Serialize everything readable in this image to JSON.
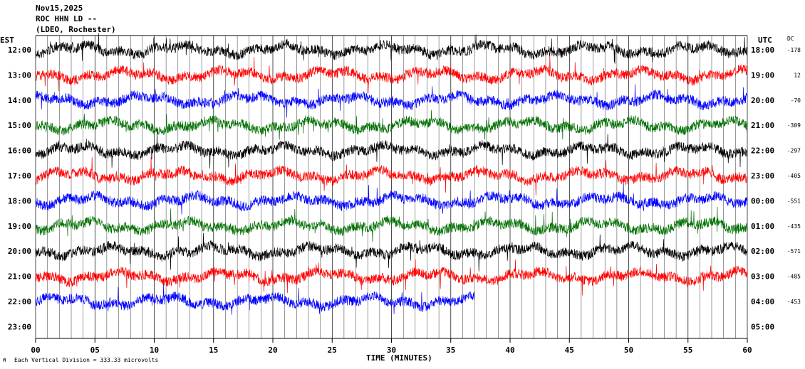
{
  "header": {
    "date": "Nov15,2025",
    "station": "ROC HHN LD --",
    "source": "(LDEO, Rochester)"
  },
  "left_zone": "EST",
  "right_zone": "UTC",
  "dc_header": "DC",
  "footer_note": "Each Vertical Division =  333.33 microvolts",
  "colors": {
    "cycle": [
      "#000000",
      "#ff0000",
      "#0000ff",
      "#007000"
    ],
    "grid": "#000000"
  },
  "chart_data": {
    "type": "line",
    "title": "Nov15,2025",
    "xlabel": "TIME (MINUTES)",
    "ylabel": "",
    "xlim": [
      0,
      60
    ],
    "x_ticks": [
      "00",
      "05",
      "10",
      "15",
      "20",
      "25",
      "30",
      "35",
      "40",
      "45",
      "50",
      "55",
      "60"
    ],
    "grid": "vertical every minute",
    "rows": [
      {
        "est": "12:00",
        "utc": "18:00",
        "dc": "-178",
        "end_minute": 60
      },
      {
        "est": "13:00",
        "utc": "19:00",
        "dc": "12",
        "end_minute": 60
      },
      {
        "est": "14:00",
        "utc": "20:00",
        "dc": "-70",
        "end_minute": 60
      },
      {
        "est": "15:00",
        "utc": "21:00",
        "dc": "-309",
        "end_minute": 60
      },
      {
        "est": "16:00",
        "utc": "22:00",
        "dc": "-297",
        "end_minute": 60
      },
      {
        "est": "17:00",
        "utc": "23:00",
        "dc": "-405",
        "end_minute": 60
      },
      {
        "est": "18:00",
        "utc": "00:00",
        "dc": "-551",
        "end_minute": 60
      },
      {
        "est": "19:00",
        "utc": "01:00",
        "dc": "-435",
        "end_minute": 60
      },
      {
        "est": "20:00",
        "utc": "02:00",
        "dc": "-571",
        "end_minute": 60
      },
      {
        "est": "21:00",
        "utc": "03:00",
        "dc": "-485",
        "end_minute": 60
      },
      {
        "est": "22:00",
        "utc": "04:00",
        "dc": "-453",
        "end_minute": 37
      },
      {
        "est": "23:00",
        "utc": "05:00",
        "dc": "",
        "end_minute": 0
      }
    ]
  }
}
